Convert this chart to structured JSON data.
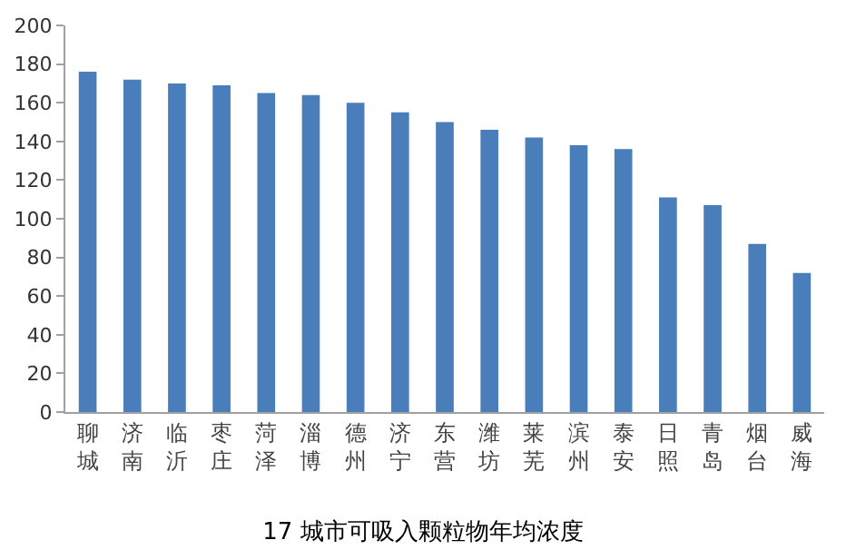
{
  "chart_data": {
    "type": "bar",
    "title": "17 城市可吸入颗粒物年均浓度",
    "categories": [
      "聊城",
      "济南",
      "临沂",
      "枣庄",
      "菏泽",
      "淄博",
      "德州",
      "济宁",
      "东营",
      "潍坊",
      "莱芜",
      "滨州",
      "泰安",
      "日照",
      "青岛",
      "烟台",
      "威海"
    ],
    "values": [
      176,
      172,
      170,
      169,
      165,
      164,
      160,
      155,
      150,
      146,
      142,
      138,
      136,
      111,
      107,
      87,
      72
    ],
    "color": "#4a7ebb",
    "ylim": [
      0,
      200
    ],
    "yticks": [
      0,
      20,
      40,
      60,
      80,
      100,
      120,
      140,
      160,
      180,
      200
    ]
  }
}
